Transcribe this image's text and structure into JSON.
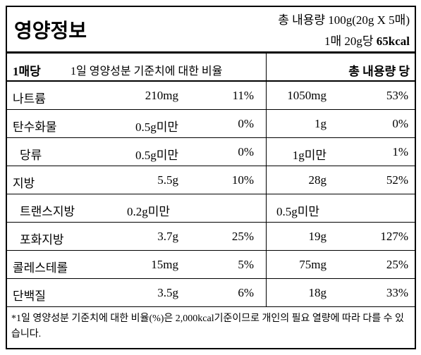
{
  "header": {
    "title": "영양정보",
    "total": "총 내용량 100g(20g X 5매)",
    "serving": "1매 20g당",
    "kcal": "65kcal"
  },
  "subheader": {
    "per_serving": "1매당",
    "ratio": "1일 영양성분 기준치에 대한 비율",
    "per_total": "총 내용량 당"
  },
  "rows": [
    {
      "name": "나트륨",
      "amount": "210mg",
      "pct": "11%",
      "total": "1050mg",
      "total_pct": "53%"
    },
    {
      "name": "탄수화물",
      "amount": "0.5g미만",
      "pct": "0%",
      "total": "1g",
      "total_pct": "0%"
    },
    {
      "name": "당류",
      "sub": true,
      "amount": "0.5g미만",
      "pct": "0%",
      "total": "1g미만",
      "total_pct": "1%"
    },
    {
      "name": "지방",
      "amount": "5.5g",
      "pct": "10%",
      "total": "28g",
      "total_pct": "52%"
    },
    {
      "name": "트랜스지방",
      "sub": true,
      "amount": "0.2g미만",
      "total": "0.5g미만"
    },
    {
      "name": "포화지방",
      "sub": true,
      "amount": "3.7g",
      "pct": "25%",
      "total": "19g",
      "total_pct": "127%"
    },
    {
      "name": "콜레스테롤",
      "amount": "15mg",
      "pct": "5%",
      "total": "75mg",
      "total_pct": "25%"
    },
    {
      "name": "단백질",
      "amount": "3.5g",
      "pct": "6%",
      "total": "18g",
      "total_pct": "33%"
    }
  ],
  "footnote": "*1일 영양성분 기준치에 대한 비율(%)은 2,000kcal기준이므로 개인의 필요 열량에 따라 다를 수 있습니다."
}
